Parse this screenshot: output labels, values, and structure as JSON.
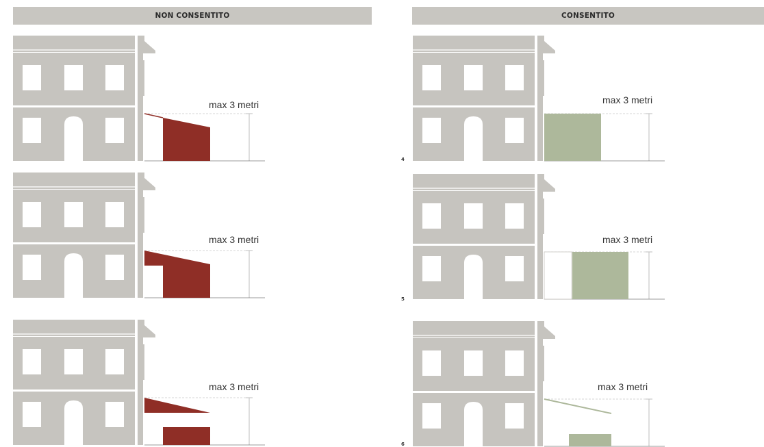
{
  "headers": {
    "left": "NON CONSENTITO",
    "right": "CONSENTITO"
  },
  "height_label": "max 3 metri",
  "panels": {
    "left": [
      {
        "number": ""
      },
      {
        "number": ""
      },
      {
        "number": ""
      }
    ],
    "right": [
      {
        "number": "4"
      },
      {
        "number": "5"
      },
      {
        "number": "6"
      }
    ]
  },
  "colors": {
    "building": "#c6c4bf",
    "not_allowed": "#8f2e26",
    "allowed": "#adb89b",
    "background": "#ffffff"
  }
}
